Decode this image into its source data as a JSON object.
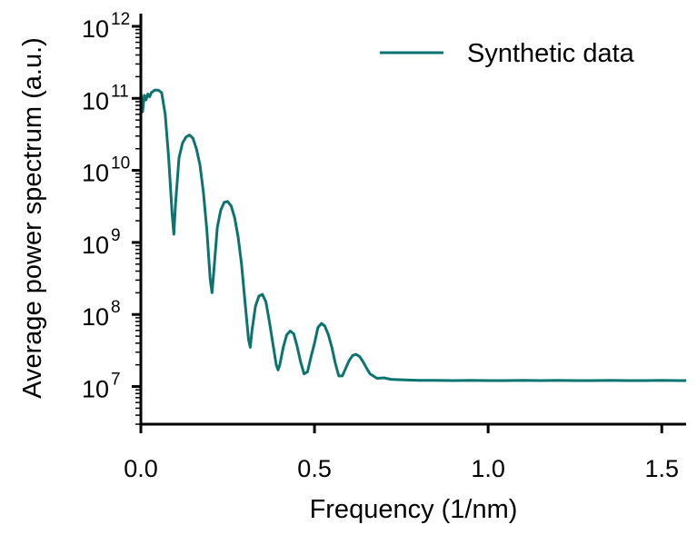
{
  "chart_data": {
    "type": "line",
    "xlabel": "Frequency (1/nm)",
    "ylabel": "Average power spectrum (a.u.)",
    "xlim": [
      0.0,
      1.57
    ],
    "ylim": [
      3000000.0,
      1500000000000.0
    ],
    "yscale": "log",
    "grid": false,
    "legend_placement": "top-right",
    "x_ticks": [
      0.0,
      0.5,
      1.0,
      1.5
    ],
    "x_tick_labels": [
      "0.0",
      "0.5",
      "1.0",
      "1.5"
    ],
    "y_ticks": [
      10000000.0,
      100000000.0,
      1000000000.0,
      10000000000.0,
      100000000000.0,
      1000000000000.0
    ],
    "y_tick_labels": [
      {
        "base": "10",
        "exp": "7"
      },
      {
        "base": "10",
        "exp": "8"
      },
      {
        "base": "10",
        "exp": "9"
      },
      {
        "base": "10",
        "exp": "10"
      },
      {
        "base": "10",
        "exp": "11"
      },
      {
        "base": "10",
        "exp": "12"
      }
    ],
    "series": [
      {
        "name": "Synthetic data",
        "color": "#0b7471",
        "x": [
          0.0,
          0.005,
          0.01,
          0.015,
          0.02,
          0.025,
          0.03,
          0.04,
          0.05,
          0.06,
          0.07,
          0.08,
          0.09,
          0.095,
          0.1,
          0.11,
          0.12,
          0.13,
          0.14,
          0.15,
          0.16,
          0.17,
          0.18,
          0.19,
          0.2,
          0.205,
          0.21,
          0.22,
          0.23,
          0.24,
          0.25,
          0.26,
          0.27,
          0.28,
          0.29,
          0.3,
          0.31,
          0.315,
          0.32,
          0.33,
          0.34,
          0.35,
          0.36,
          0.37,
          0.38,
          0.39,
          0.395,
          0.4,
          0.41,
          0.42,
          0.43,
          0.44,
          0.45,
          0.46,
          0.47,
          0.48,
          0.49,
          0.5,
          0.51,
          0.52,
          0.53,
          0.54,
          0.55,
          0.56,
          0.57,
          0.58,
          0.59,
          0.6,
          0.61,
          0.62,
          0.63,
          0.64,
          0.65,
          0.66,
          0.68,
          0.7,
          0.72,
          0.75,
          0.8,
          0.85,
          0.9,
          0.95,
          1.0,
          1.05,
          1.1,
          1.15,
          1.2,
          1.25,
          1.3,
          1.35,
          1.4,
          1.45,
          1.5,
          1.55,
          1.57
        ],
        "y": [
          120000000000.0,
          65000000000.0,
          110000000000.0,
          95000000000.0,
          115000000000.0,
          105000000000.0,
          120000000000.0,
          130000000000.0,
          130000000000.0,
          120000000000.0,
          60000000000.0,
          15000000000.0,
          2500000000.0,
          1300000000.0,
          3500000000.0,
          15000000000.0,
          24000000000.0,
          29000000000.0,
          31000000000.0,
          28000000000.0,
          20000000000.0,
          12000000000.0,
          5000000000.0,
          1500000000.0,
          300000000.0,
          200000000.0,
          400000000.0,
          1600000000.0,
          2800000000.0,
          3600000000.0,
          3700000000.0,
          3200000000.0,
          2200000000.0,
          1200000000.0,
          500000000.0,
          150000000.0,
          45000000.0,
          35000000.0,
          60000000.0,
          130000000.0,
          180000000.0,
          190000000.0,
          150000000.0,
          80000000.0,
          40000000.0,
          20000000.0,
          17000000.0,
          20000000.0,
          35000000.0,
          52000000.0,
          59000000.0,
          54000000.0,
          36000000.0,
          22000000.0,
          15000000.0,
          16000000.0,
          26000000.0,
          40000000.0,
          66000000.0,
          75000000.0,
          69000000.0,
          52000000.0,
          35000000.0,
          21000000.0,
          14000000.0,
          14000000.0,
          18000000.0,
          23000000.0,
          27000000.0,
          28000000.0,
          26000000.0,
          22000000.0,
          18000000.0,
          15000000.0,
          13000000.0,
          13200000.0,
          12600000.0,
          12400000.0,
          12200000.0,
          12200000.0,
          12100000.0,
          12200000.0,
          12100000.0,
          12100000.0,
          12200000.0,
          12100000.0,
          12200000.0,
          12100000.0,
          12100000.0,
          12200000.0,
          12100000.0,
          12100000.0,
          12200000.0,
          12100000.0,
          12100000.0
        ]
      }
    ]
  }
}
